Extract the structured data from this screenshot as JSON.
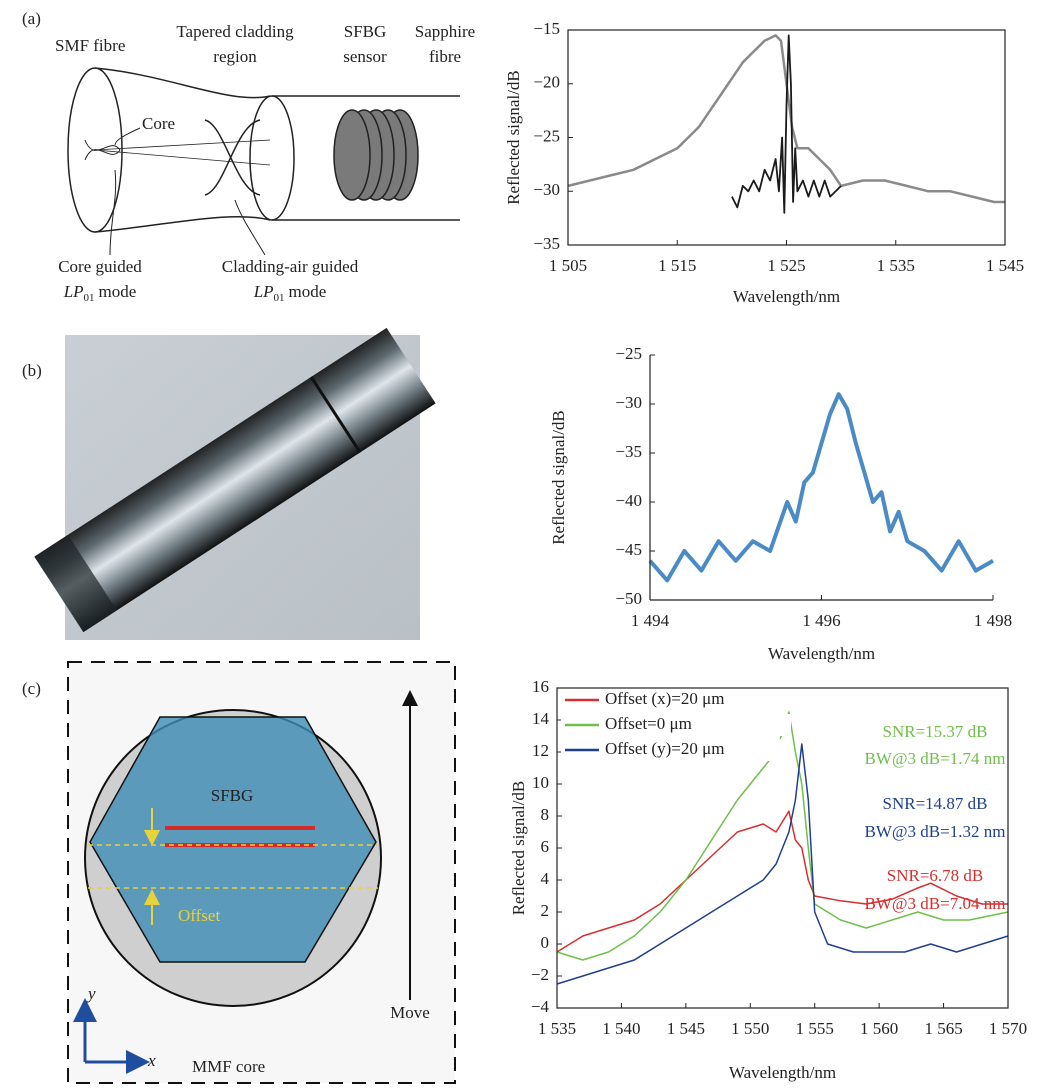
{
  "panel_labels": [
    "(a)",
    "(b)",
    "(c)"
  ],
  "diagram_a": {
    "smf": "SMF fibre",
    "tapered": [
      "Tapered cladding",
      "region"
    ],
    "sfbg": [
      "SFBG",
      "sensor"
    ],
    "sapphire": [
      "Sapphire",
      "fibre"
    ],
    "core": "Core",
    "core_mode": {
      "line1": "Core guided",
      "lp": "LP",
      "sub": "01",
      "rest": "mode"
    },
    "clad_mode": {
      "line1": "Cladding-air guided",
      "lp": "LP",
      "sub": "01",
      "rest": "mode"
    }
  },
  "diagram_c": {
    "sfbg": "SFBG",
    "offset": "Offset",
    "move": "Move",
    "y": "y",
    "x": "x",
    "core": "MMF core"
  },
  "chart_data": [
    {
      "type": "line",
      "xlabel": "Wavelength/nm",
      "ylabel": "Reflected signal/dB",
      "frame": true,
      "xlim": [
        1505,
        1545
      ],
      "ylim": [
        -35,
        -15
      ],
      "xticks": [
        {
          "value": 1505,
          "label": "1 505"
        },
        {
          "value": 1515,
          "label": "1 515"
        },
        {
          "value": 1525,
          "label": "1 525"
        },
        {
          "value": 1535,
          "label": "1 535"
        },
        {
          "value": 1545,
          "label": "1 545"
        }
      ],
      "yticks": [
        {
          "value": -35,
          "label": "−35"
        },
        {
          "value": -30,
          "label": "−30"
        },
        {
          "value": -25,
          "label": "−25"
        },
        {
          "value": -20,
          "label": "−20"
        },
        {
          "value": -15,
          "label": "−15"
        }
      ],
      "series": [
        {
          "color": "#8a8a8a",
          "x": [
            1505,
            1507,
            1509,
            1511,
            1513,
            1515,
            1516,
            1517,
            1518,
            1519,
            1520,
            1521,
            1522,
            1523,
            1524,
            1524.5,
            1525,
            1525.5,
            1526,
            1527,
            1528,
            1529,
            1530,
            1532,
            1534,
            1536,
            1538,
            1540,
            1542,
            1544,
            1545
          ],
          "values": [
            -29.5,
            -29,
            -28.5,
            -28,
            -27,
            -26,
            -25,
            -24,
            -22.5,
            -21,
            -19.5,
            -18,
            -17,
            -16,
            -15.5,
            -16,
            -20,
            -24,
            -26,
            -26,
            -27,
            -28,
            -29.5,
            -29,
            -29,
            -29.5,
            -30,
            -30,
            -30.5,
            -31,
            -31
          ]
        },
        {
          "color": "#1a1a1a",
          "x": [
            1520,
            1520.5,
            1521,
            1521.5,
            1522,
            1522.5,
            1523,
            1523.5,
            1524,
            1524.3,
            1524.6,
            1524.8,
            1525,
            1525.2,
            1525.4,
            1525.6,
            1525.8,
            1526,
            1526.5,
            1527,
            1527.5,
            1528,
            1528.5,
            1529,
            1530
          ],
          "values": [
            -30.5,
            -31.5,
            -29.5,
            -30,
            -29,
            -30,
            -28,
            -29,
            -27,
            -30,
            -25,
            -32,
            -22,
            -15.5,
            -20,
            -31,
            -26,
            -30,
            -29,
            -30.5,
            -29,
            -30.5,
            -29,
            -30.5,
            -29.5
          ]
        }
      ]
    },
    {
      "type": "line",
      "xlabel": "Wavelength/nm",
      "ylabel": "Reflected signal/dB",
      "frame": false,
      "xlim": [
        1494,
        1498
      ],
      "ylim": [
        -50,
        -25
      ],
      "xticks": [
        {
          "value": 1494,
          "label": "1 494"
        },
        {
          "value": 1496,
          "label": "1 496"
        },
        {
          "value": 1498,
          "label": "1 498"
        }
      ],
      "yticks": [
        {
          "value": -50,
          "label": "−50"
        },
        {
          "value": -45,
          "label": "−45"
        },
        {
          "value": -40,
          "label": "−40"
        },
        {
          "value": -35,
          "label": "−35"
        },
        {
          "value": -30,
          "label": "−30"
        },
        {
          "value": -25,
          "label": "−25"
        }
      ],
      "series": [
        {
          "color": "#4a8bc6",
          "x": [
            1494,
            1494.2,
            1494.4,
            1494.6,
            1494.8,
            1495,
            1495.2,
            1495.4,
            1495.6,
            1495.7,
            1495.8,
            1495.9,
            1496,
            1496.1,
            1496.2,
            1496.3,
            1496.4,
            1496.5,
            1496.6,
            1496.7,
            1496.8,
            1496.9,
            1497,
            1497.2,
            1497.4,
            1497.6,
            1497.8,
            1498
          ],
          "values": [
            -46,
            -48,
            -45,
            -47,
            -44,
            -46,
            -44,
            -45,
            -40,
            -42,
            -38,
            -37,
            -34,
            -31,
            -29,
            -30.5,
            -34,
            -37,
            -40,
            -39,
            -43,
            -41,
            -44,
            -45,
            -47,
            -44,
            -47,
            -46
          ]
        }
      ]
    },
    {
      "type": "line",
      "xlabel": "Wavelength/nm",
      "ylabel": "Reflected signal/dB",
      "frame": true,
      "xlim": [
        1535,
        1570
      ],
      "ylim": [
        -4,
        16
      ],
      "xticks": [
        {
          "value": 1535,
          "label": "1 535"
        },
        {
          "value": 1540,
          "label": "1 540"
        },
        {
          "value": 1545,
          "label": "1 545"
        },
        {
          "value": 1550,
          "label": "1 550"
        },
        {
          "value": 1555,
          "label": "1 555"
        },
        {
          "value": 1560,
          "label": "1 560"
        },
        {
          "value": 1565,
          "label": "1 565"
        },
        {
          "value": 1570,
          "label": "1 570"
        }
      ],
      "yticks": [
        {
          "value": -4,
          "label": "−4"
        },
        {
          "value": -2,
          "label": "−2"
        },
        0,
        2,
        4,
        6,
        8,
        10,
        12,
        14,
        16
      ],
      "series": [
        {
          "name": "Offset (x)=20 μm",
          "color": "#d62f2f",
          "x": [
            1535,
            1537,
            1539,
            1541,
            1543,
            1545,
            1547,
            1549,
            1551,
            1552,
            1553,
            1553.5,
            1554,
            1554.5,
            1555,
            1557,
            1559,
            1561,
            1563,
            1564,
            1566,
            1568,
            1570
          ],
          "values": [
            -0.5,
            0.5,
            1,
            1.5,
            2.5,
            4,
            5.5,
            7,
            7.5,
            7,
            8.3,
            6.5,
            6,
            4,
            3,
            2.7,
            2.5,
            2.8,
            3.5,
            3.8,
            3,
            2.5,
            2.5
          ]
        },
        {
          "name": "Offset=0 μm",
          "color": "#6fbf4a",
          "x": [
            1535,
            1537,
            1539,
            1541,
            1543,
            1545,
            1547,
            1549,
            1551,
            1552,
            1553,
            1553.5,
            1554,
            1554.5,
            1555,
            1557,
            1559,
            1561,
            1563,
            1565,
            1567,
            1570
          ],
          "values": [
            -0.5,
            -1,
            -0.5,
            0.5,
            2,
            4,
            6.5,
            9,
            11,
            12,
            14.5,
            12,
            10,
            6,
            2.5,
            1.5,
            1,
            1.5,
            2,
            1.5,
            1.5,
            2
          ]
        },
        {
          "name": "Offset (y)=20 μm",
          "color": "#1f3f8f",
          "x": [
            1535,
            1537,
            1539,
            1541,
            1543,
            1545,
            1547,
            1549,
            1551,
            1552,
            1553,
            1553.5,
            1554,
            1554.5,
            1555,
            1556,
            1558,
            1560,
            1562,
            1564,
            1566,
            1568,
            1570
          ],
          "values": [
            -2.5,
            -2,
            -1.5,
            -1,
            0,
            1,
            2,
            3,
            4,
            5,
            7,
            9,
            12.5,
            9,
            2,
            0,
            -0.5,
            -0.5,
            -0.5,
            0,
            -0.5,
            0,
            0.5
          ]
        }
      ],
      "annotations": [
        {
          "text": "SNR=15.37 dB",
          "color": "#6fbf4a"
        },
        {
          "text": "BW@3 dB=1.74 nm",
          "color": "#6fbf4a"
        },
        {
          "text": "SNR=14.87 dB",
          "color": "#1f3f8f"
        },
        {
          "text": "BW@3 dB=1.32 nm",
          "color": "#1f3f8f"
        },
        {
          "text": "SNR=6.78 dB",
          "color": "#d62f2f"
        },
        {
          "text": "BW@3 dB=7.04 nm",
          "color": "#d62f2f"
        }
      ]
    }
  ]
}
